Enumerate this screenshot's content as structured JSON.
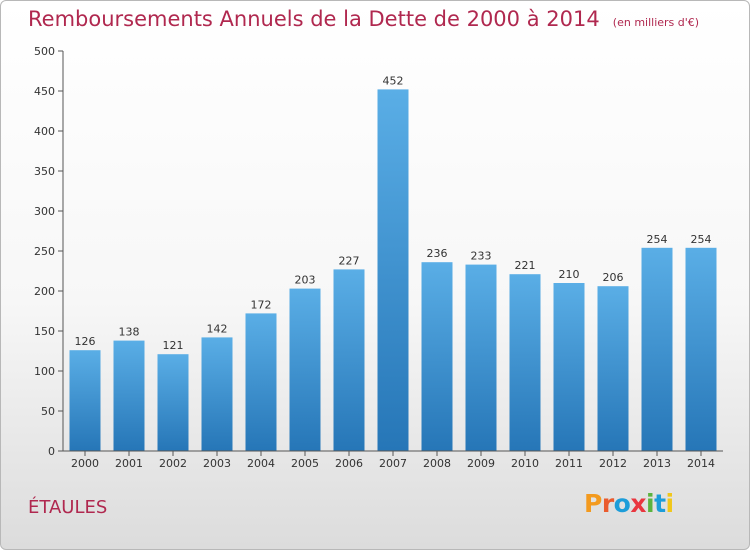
{
  "title": "Remboursements Annuels de la Dette de 2000 à 2014",
  "subtitle": "(en milliers d'€)",
  "commune": "ÉTAULES",
  "logo": {
    "text": "Proxiti",
    "colors": [
      "#f39a1e",
      "#ea5b2d",
      "#1d9dd9",
      "#e9363f",
      "#5bb33f",
      "#1d9dd9",
      "#f1c71a"
    ]
  },
  "colors": {
    "title": "#b0284f",
    "bar_top": "#5aaee6",
    "bar_bottom": "#2676b7",
    "axis": "#555555"
  },
  "chart_data": {
    "type": "bar",
    "categories": [
      "2000",
      "2001",
      "2002",
      "2003",
      "2004",
      "2005",
      "2006",
      "2007",
      "2008",
      "2009",
      "2010",
      "2011",
      "2012",
      "2013",
      "2014"
    ],
    "values": [
      126,
      138,
      121,
      142,
      172,
      203,
      227,
      452,
      236,
      233,
      221,
      210,
      206,
      254,
      254
    ],
    "ylim": [
      0,
      500
    ],
    "yticks": [
      0,
      50,
      100,
      150,
      200,
      250,
      300,
      350,
      400,
      450,
      500
    ],
    "grid": false,
    "xlabel": "",
    "ylabel": ""
  }
}
